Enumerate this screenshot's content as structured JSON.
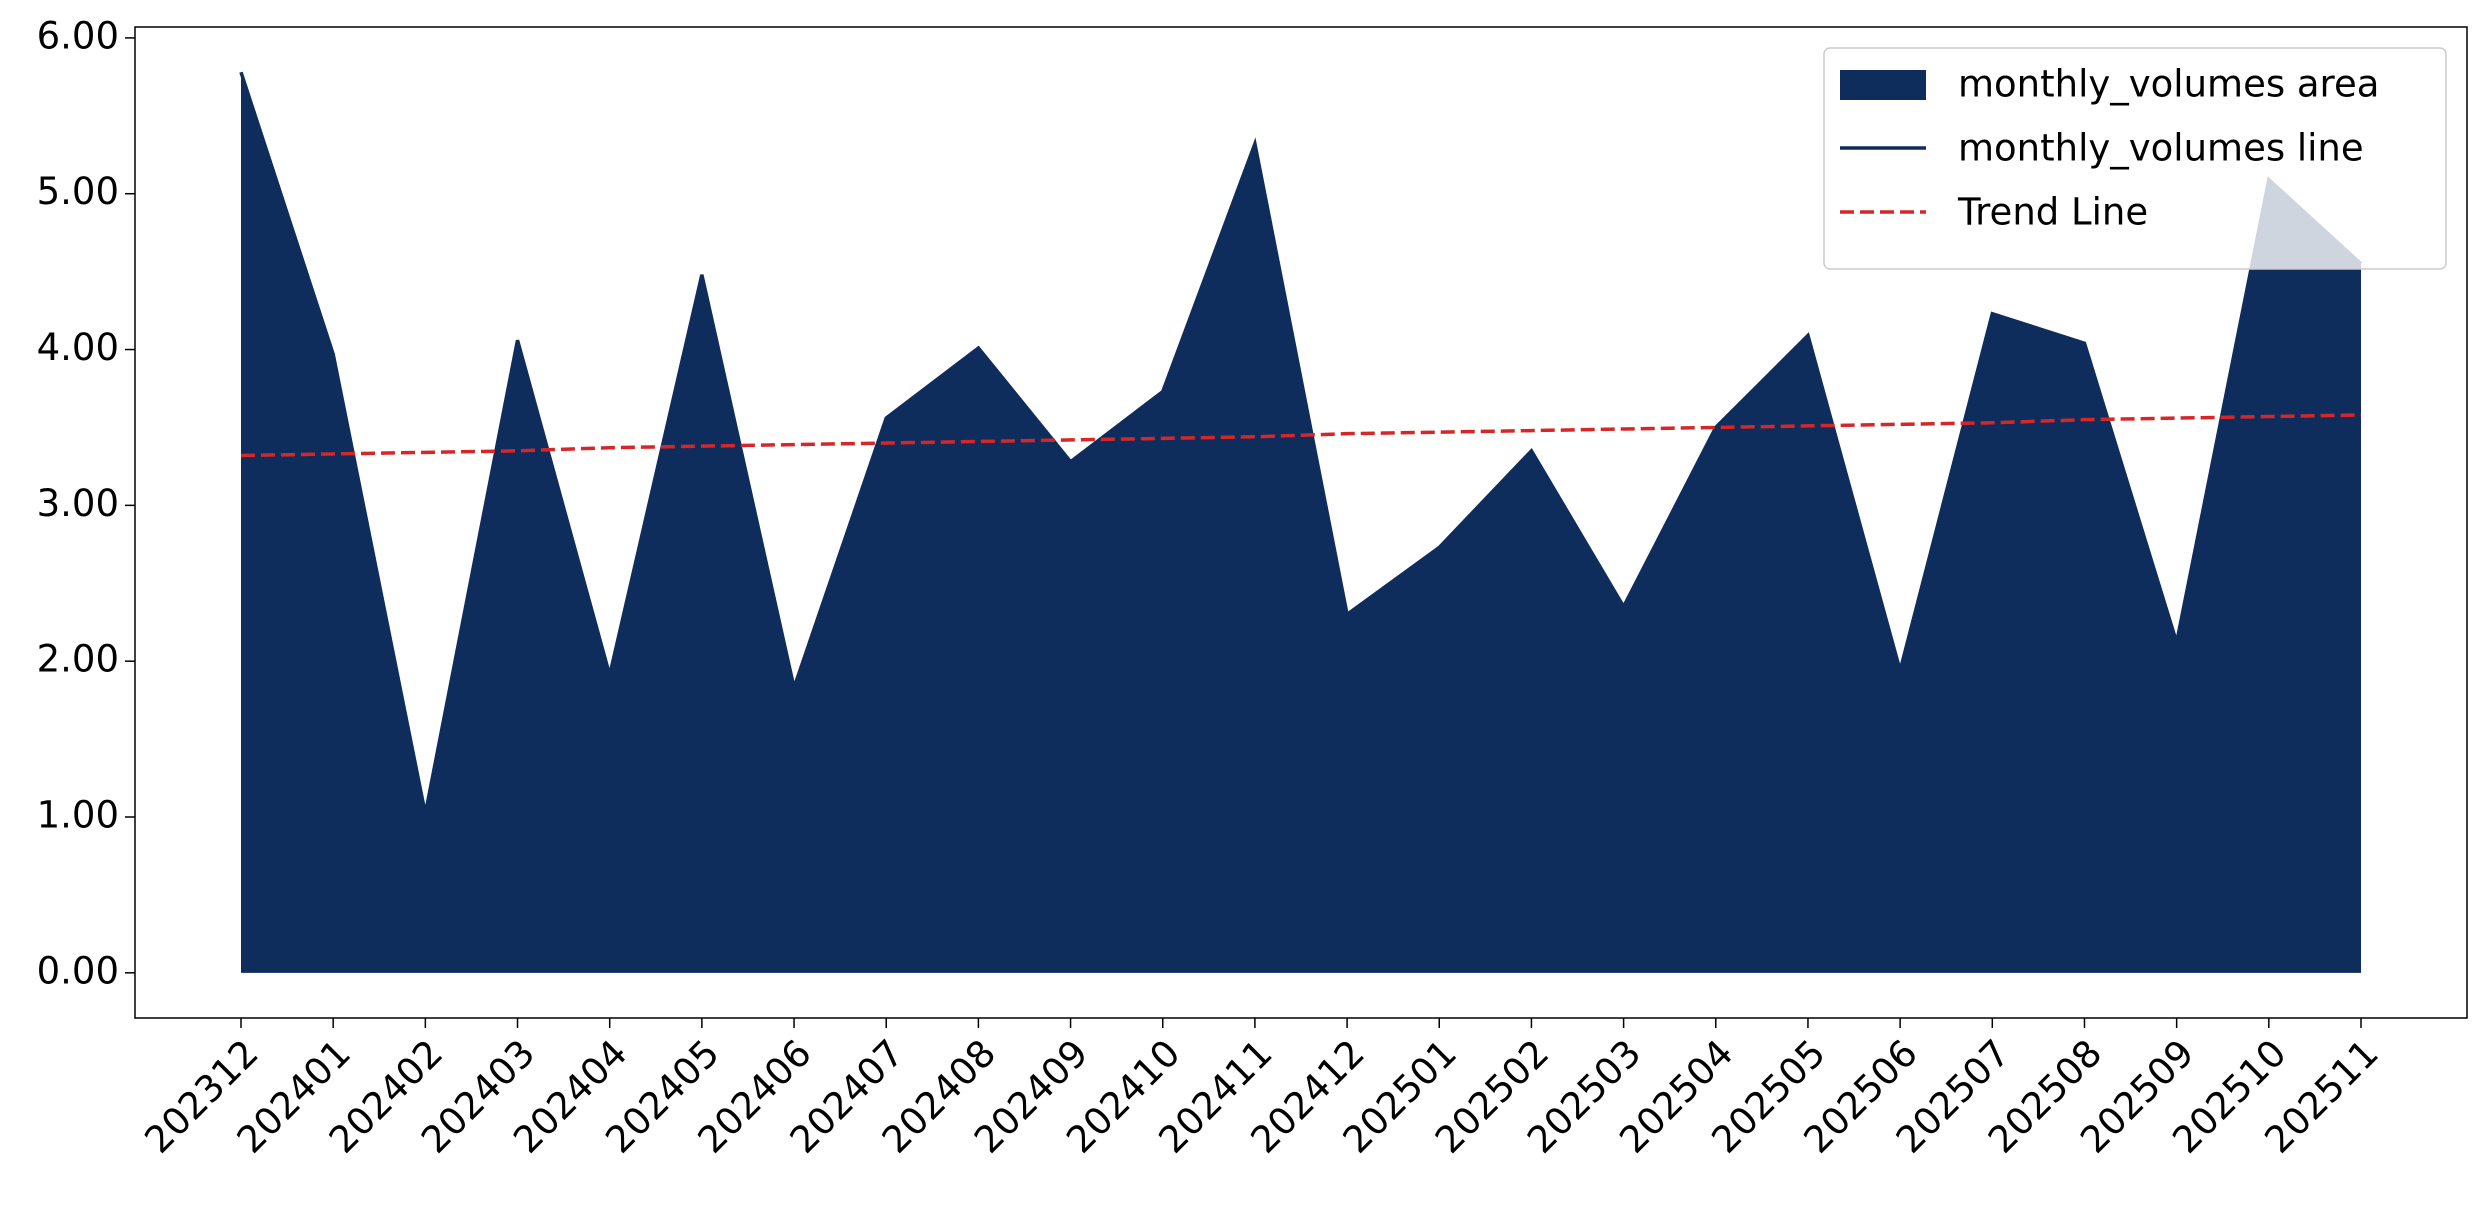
{
  "chart_data": {
    "type": "area",
    "categories": [
      "202312",
      "202401",
      "202402",
      "202403",
      "202404",
      "202405",
      "202406",
      "202407",
      "202408",
      "202409",
      "202410",
      "202411",
      "202412",
      "202501",
      "202502",
      "202503",
      "202504",
      "202505",
      "202506",
      "202507",
      "202508",
      "202509",
      "202510",
      "202511"
    ],
    "series": [
      {
        "name": "monthly_volumes area",
        "kind": "area",
        "color": "#0f2d5c",
        "values": [
          5.78,
          3.97,
          1.02,
          4.06,
          1.91,
          4.48,
          1.83,
          3.56,
          4.01,
          3.28,
          3.73,
          5.32,
          2.3,
          2.73,
          3.35,
          2.35,
          3.5,
          4.09,
          1.94,
          4.23,
          4.04,
          2.12,
          5.09,
          4.55
        ]
      },
      {
        "name": "monthly_volumes line",
        "kind": "line",
        "color": "#0f2d5c",
        "values": [
          5.78,
          3.97,
          1.02,
          4.06,
          1.91,
          4.48,
          1.83,
          3.56,
          4.01,
          3.28,
          3.73,
          5.32,
          2.3,
          2.73,
          3.35,
          2.35,
          3.5,
          4.09,
          1.94,
          4.23,
          4.04,
          2.12,
          5.09,
          4.55
        ]
      },
      {
        "name": "Trend Line",
        "kind": "dashed",
        "color": "#d62728",
        "values": [
          3.32,
          3.33,
          3.34,
          3.35,
          3.37,
          3.38,
          3.39,
          3.4,
          3.41,
          3.42,
          3.43,
          3.44,
          3.46,
          3.47,
          3.48,
          3.49,
          3.5,
          3.51,
          3.52,
          3.53,
          3.55,
          3.56,
          3.57,
          3.58
        ]
      }
    ],
    "ylim": [
      -0.29,
      6.07
    ],
    "yticks": [
      {
        "value": 0,
        "label": "0.00"
      },
      {
        "value": 1,
        "label": "1.00"
      },
      {
        "value": 2,
        "label": "2.00"
      },
      {
        "value": 3,
        "label": "3.00"
      },
      {
        "value": 4,
        "label": "4.00"
      },
      {
        "value": 5,
        "label": "5.00"
      },
      {
        "value": 6,
        "label": "6.00"
      }
    ],
    "grid": false,
    "legend": "upper right"
  }
}
